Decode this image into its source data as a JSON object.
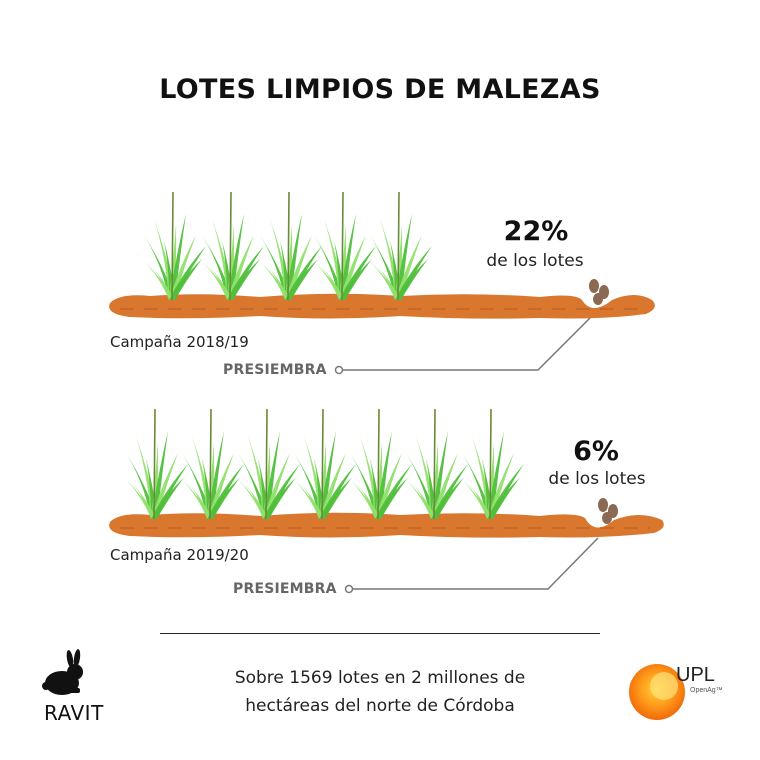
{
  "title": "LOTES LIMPIOS DE MALEZAS",
  "rows": [
    {
      "percent": "22%",
      "percent_label": "de los lotes",
      "campaign": "Campaña 2018/19",
      "stage": "PRESIEMBRA"
    },
    {
      "percent": "6%",
      "percent_label": "de los lotes",
      "campaign": "Campaña 2019/20",
      "stage": "PRESIEMBRA"
    }
  ],
  "footer": {
    "line1": "Sobre 1569 lotes en 2 millones de",
    "line2": "hectáreas del norte de Córdoba"
  },
  "logos": {
    "left": "RAVIT",
    "right": "UPL",
    "right_sub": "OpenAg™"
  },
  "colors": {
    "soil": "#d9772e",
    "soil_dark": "#b85a1f",
    "grass": "#4fbf3a",
    "grass_light": "#8fe06a",
    "leader_line": "#777777",
    "seed": "#8a6a52"
  }
}
